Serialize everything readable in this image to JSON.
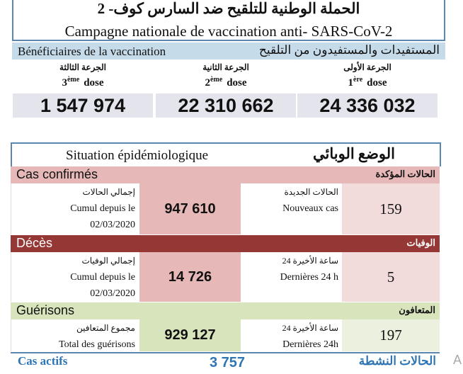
{
  "header": {
    "title_ar": "الحملة الوطنية للتلقيح ضد السارس كوف- 2",
    "title_fr": "Campagne nationale de vaccination anti- SARS-CoV-2"
  },
  "vaccination": {
    "label_fr": "Bénéficiaires de la vaccination",
    "label_ar": "المستفيدات والمستفيدون من التلقيح",
    "doses": [
      {
        "label_ar": "الجرعة الثالثة",
        "num": "3",
        "sup": "ème",
        "word": "dose",
        "value": "1 547 974"
      },
      {
        "label_ar": "الجرعة الثانية",
        "num": "2",
        "sup": "ème",
        "word": "dose",
        "value": "22 310 662"
      },
      {
        "label_ar": "الجرعة الأولى",
        "num": "1",
        "sup": "ère",
        "word": "dose",
        "value": "24 336 032"
      }
    ]
  },
  "situation": {
    "title_fr": "Situation épidémiologique",
    "title_ar": "الوضع الوبائي",
    "sections": [
      {
        "label_fr": "Cas confirmés",
        "label_ar": "الحالات المؤكدة",
        "left": {
          "lines": [
            "إجمالي الحالات",
            "Cumul depuis le",
            "02/03/2020"
          ],
          "value": "947 610"
        },
        "right": {
          "lines": [
            "الحالات الجديدة",
            "Nouveaux cas"
          ],
          "value": "159"
        }
      },
      {
        "label_fr": "Décès",
        "label_ar": "الوفيات",
        "left": {
          "lines": [
            "إجمالي الوفيات",
            "Cumul depuis le",
            "02/03/2020"
          ],
          "value": "14 726"
        },
        "right": {
          "lines": [
            "24 ساعة الأخيرة",
            "Dernières 24 h"
          ],
          "value": "5"
        }
      },
      {
        "label_fr": "Guérisons",
        "label_ar": "المتعافون",
        "left": {
          "lines": [
            "مجموع المتعافين",
            "Total des guérisons"
          ],
          "value": "929 127"
        },
        "right": {
          "lines": [
            "24 ساعة الأخيرة",
            "Dernières 24h"
          ],
          "value": "197"
        }
      }
    ],
    "active": {
      "label_fr": "Cas actifs",
      "value": "3 757",
      "label_ar": "الحالات النشطة"
    }
  },
  "margin_text": "A"
}
